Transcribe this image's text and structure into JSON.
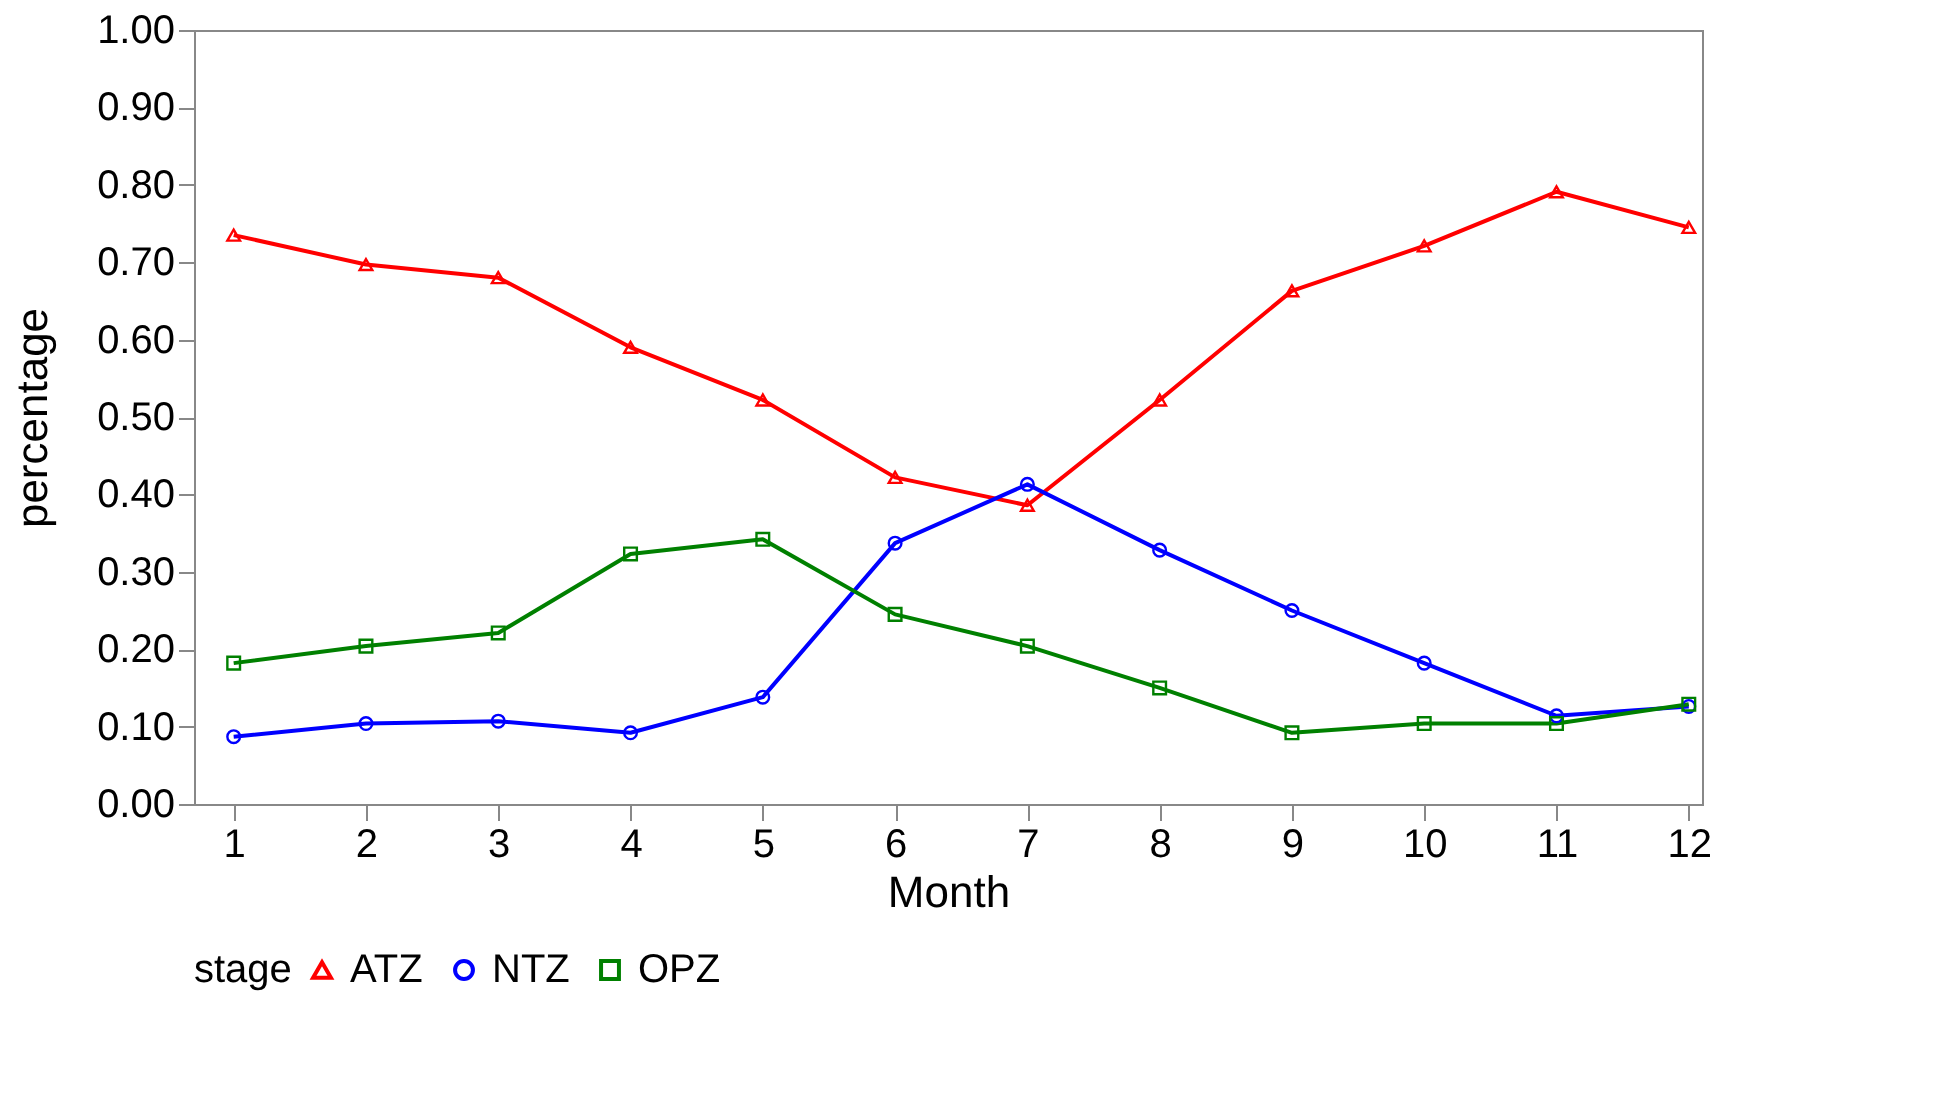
{
  "chart_data": {
    "type": "line",
    "xlabel": "Month",
    "ylabel": "percentage",
    "legend_title": "stage",
    "legend": "bottom",
    "grid": false,
    "line_style": "solid",
    "x": [
      1,
      2,
      3,
      4,
      5,
      6,
      7,
      8,
      9,
      10,
      11,
      12
    ],
    "xlim": [
      0.7,
      12.1
    ],
    "xticks": [
      1,
      2,
      3,
      4,
      5,
      6,
      7,
      8,
      9,
      10,
      11,
      12
    ],
    "ylim": [
      0,
      1
    ],
    "yticks": [
      {
        "value": 0,
        "label": "0.00"
      },
      {
        "value": 0.1,
        "label": "0.10"
      },
      {
        "value": 0.2,
        "label": "0.20"
      },
      {
        "value": 0.3,
        "label": "0.30"
      },
      {
        "value": 0.4,
        "label": "0.40"
      },
      {
        "value": 0.5,
        "label": "0.50"
      },
      {
        "value": 0.6,
        "label": "0.60"
      },
      {
        "value": 0.7,
        "label": "0.70"
      },
      {
        "value": 0.8,
        "label": "0.80"
      },
      {
        "value": 0.9,
        "label": "0.90"
      },
      {
        "value": 1,
        "label": "1.00"
      }
    ],
    "series": [
      {
        "name": "ATZ",
        "color": "#ff0000",
        "marker": "triangle",
        "values": [
          0.735,
          0.697,
          0.68,
          0.59,
          0.522,
          0.422,
          0.386,
          0.522,
          0.663,
          0.721,
          0.791,
          0.745
        ]
      },
      {
        "name": "NTZ",
        "color": "#0000ff",
        "marker": "circle",
        "values": [
          0.087,
          0.104,
          0.107,
          0.092,
          0.138,
          0.337,
          0.413,
          0.328,
          0.25,
          0.182,
          0.114,
          0.126
        ]
      },
      {
        "name": "OPZ",
        "color": "#008000",
        "marker": "square",
        "values": [
          0.182,
          0.204,
          0.221,
          0.323,
          0.342,
          0.245,
          0.204,
          0.15,
          0.092,
          0.104,
          0.104,
          0.129
        ]
      }
    ]
  }
}
